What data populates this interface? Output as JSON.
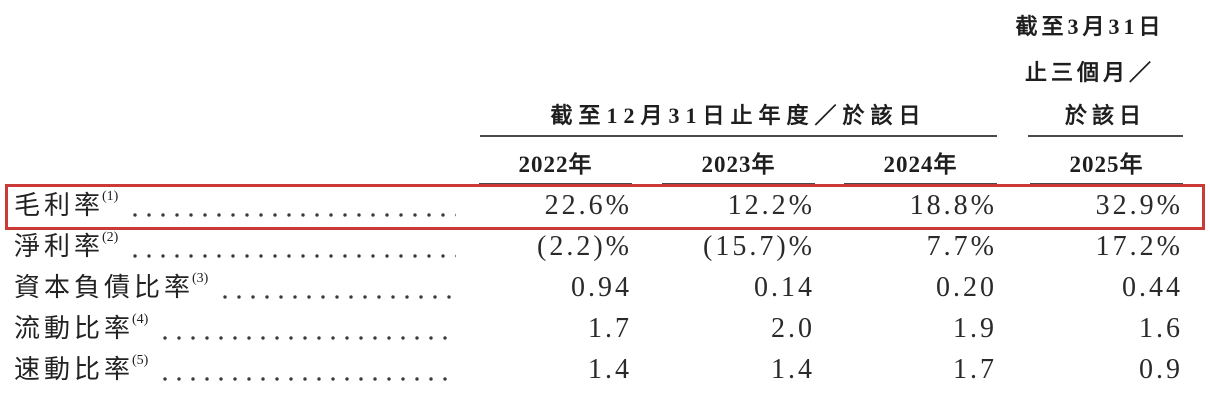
{
  "table": {
    "header": {
      "right_group": {
        "line1": "截至3月31日",
        "line2": "止三個月／",
        "line3": "於該日"
      },
      "left_group": "截至12月31日止年度／於該日",
      "years": [
        "2022年",
        "2023年",
        "2024年",
        "2025年"
      ]
    },
    "rows": [
      {
        "label": "毛利率",
        "note": "(1)",
        "values": [
          "22.6%",
          "12.2%",
          "18.8%",
          "32.9%"
        ],
        "highlighted": true
      },
      {
        "label": "淨利率",
        "note": "(2)",
        "values": [
          "(2.2)%",
          "(15.7)%",
          "7.7%",
          "17.2%"
        ],
        "highlighted": false
      },
      {
        "label": "資本負債比率",
        "note": "(3)",
        "values": [
          "0.94",
          "0.14",
          "0.20",
          "0.44"
        ],
        "highlighted": false
      },
      {
        "label": "流動比率",
        "note": "(4)",
        "values": [
          "1.7",
          "2.0",
          "1.9",
          "1.6"
        ],
        "highlighted": false
      },
      {
        "label": "速動比率",
        "note": "(5)",
        "values": [
          "1.4",
          "1.4",
          "1.7",
          "0.9"
        ],
        "highlighted": false
      }
    ],
    "highlight_color": "#cb3a36"
  }
}
